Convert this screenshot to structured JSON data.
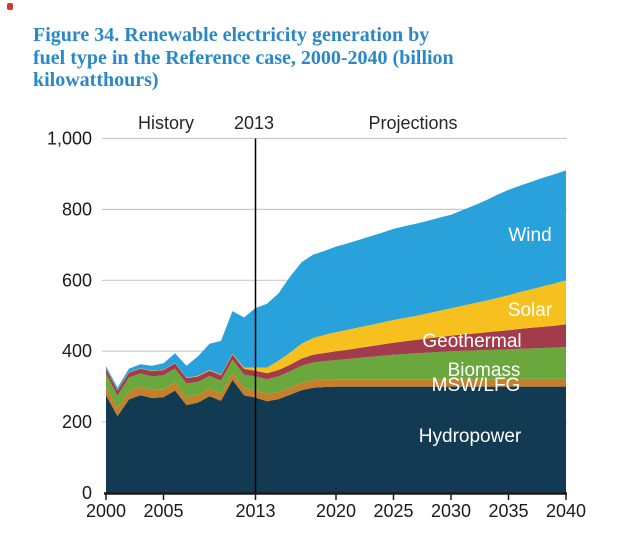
{
  "page": {
    "title_lines": [
      "Figure 34. Renewable electricity generation by",
      "fuel type in the Reference case, 2000-2040 (billion",
      "kilowatthours)"
    ],
    "title_color": "#2b88c8"
  },
  "header": {
    "history": "History",
    "divider_year": "2013",
    "projections": "Projections"
  },
  "chart_data": {
    "type": "area",
    "stacked": true,
    "title": "Figure 34. Renewable electricity generation by fuel type in the Reference case, 2000-2040 (billion kilowatthours)",
    "units": "billion kilowatthours",
    "grid": "horizontal",
    "legend_position": "inside-right",
    "divider_year": 2013,
    "xlim": [
      2000,
      2040
    ],
    "ylim": [
      0,
      1000
    ],
    "xticks": {
      "values": [
        2000,
        2005,
        2013,
        2020,
        2025,
        2030,
        2035,
        2040
      ],
      "labels": [
        "2000",
        "2005",
        "2013",
        "2020",
        "2025",
        "2030",
        "2035",
        "2040"
      ]
    },
    "yticks": {
      "values": [
        0,
        200,
        400,
        600,
        800,
        1000
      ],
      "labels": [
        "0",
        "200",
        "400",
        "600",
        "800",
        "1,000"
      ]
    },
    "annotations": [
      "History",
      "2013",
      "Projections"
    ],
    "colors": {
      "grid": "#c9c9c9",
      "axis": "#1a1a1a",
      "divider_line": "#000000",
      "tick_text": "#1a1a1a",
      "series_label_text": "#ffffff"
    },
    "x": [
      2000,
      2001,
      2002,
      2003,
      2004,
      2005,
      2006,
      2007,
      2008,
      2009,
      2010,
      2011,
      2012,
      2013,
      2014,
      2015,
      2016,
      2017,
      2018,
      2019,
      2020,
      2021,
      2022,
      2023,
      2024,
      2025,
      2026,
      2027,
      2028,
      2029,
      2030,
      2031,
      2032,
      2033,
      2034,
      2035,
      2036,
      2037,
      2038,
      2039,
      2040
    ],
    "series": [
      {
        "name": "Hydropower",
        "color": "#123a52",
        "values": [
          276,
          217,
          264,
          276,
          268,
          270,
          289,
          248,
          255,
          273,
          260,
          319,
          276,
          269,
          259,
          265,
          277,
          290,
          297,
          299,
          300,
          300,
          300,
          300,
          300,
          300,
          300,
          300,
          300,
          300,
          300,
          300,
          300,
          300,
          300,
          300,
          300,
          300,
          300,
          300,
          300
        ]
      },
      {
        "name": "MSW/LFG",
        "color": "#c6802c",
        "values": [
          23,
          23,
          23,
          24,
          23,
          23,
          23,
          22,
          22,
          21,
          20,
          20,
          20,
          20,
          20,
          20,
          20,
          21,
          21,
          21,
          21,
          21,
          21,
          21,
          21,
          21,
          21,
          21,
          21,
          21,
          21,
          21,
          21,
          21,
          21,
          21,
          22,
          22,
          22,
          22,
          22
        ]
      },
      {
        "name": "Biomass",
        "color": "#6aa83e",
        "values": [
          38,
          35,
          39,
          37,
          38,
          39,
          39,
          39,
          37,
          36,
          37,
          37,
          38,
          40,
          42,
          44,
          46,
          48,
          50,
          52,
          54,
          57,
          60,
          63,
          66,
          69,
          71,
          73,
          75,
          77,
          79,
          80,
          81,
          82,
          83,
          84,
          85,
          86,
          87,
          88,
          90
        ]
      },
      {
        "name": "Geothermal",
        "color": "#a23b4c",
        "values": [
          14,
          14,
          14,
          14,
          15,
          15,
          15,
          15,
          15,
          15,
          15,
          15,
          16,
          16,
          17,
          18,
          19,
          20,
          22,
          23,
          25,
          26,
          28,
          30,
          32,
          34,
          36,
          38,
          40,
          42,
          44,
          46,
          48,
          50,
          52,
          54,
          56,
          58,
          60,
          62,
          64
        ]
      },
      {
        "name": "Solar",
        "color": "#f6c11e",
        "values": [
          1,
          1,
          1,
          1,
          1,
          1,
          1,
          1,
          2,
          2,
          2,
          2,
          4,
          9,
          16,
          26,
          34,
          42,
          47,
          51,
          54,
          56,
          58,
          60,
          62,
          64,
          66,
          68,
          71,
          74,
          77,
          81,
          85,
          89,
          94,
          99,
          104,
          109,
          114,
          119,
          124
        ]
      },
      {
        "name": "Wind",
        "color": "#29a1da",
        "values": [
          6,
          7,
          10,
          11,
          14,
          18,
          27,
          34,
          55,
          74,
          95,
          120,
          141,
          168,
          180,
          190,
          214,
          230,
          235,
          237,
          241,
          244,
          247,
          250,
          253,
          257,
          259,
          260,
          261,
          263,
          264,
          270,
          276,
          283,
          291,
          297,
          300,
          303,
          306,
          308,
          310
        ]
      }
    ]
  }
}
